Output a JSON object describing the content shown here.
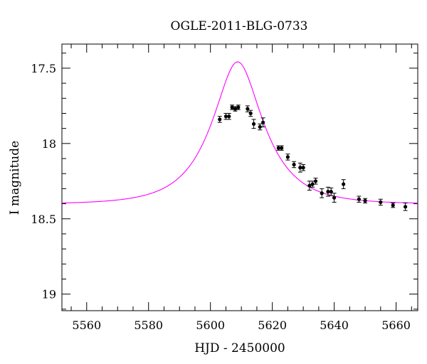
{
  "chart_data": {
    "type": "scatter",
    "title": "OGLE-2011-BLG-0733",
    "xlabel": "HJD - 2450000",
    "ylabel": "I magnitude",
    "xlim": [
      5552,
      5667
    ],
    "ylim": [
      19.11,
      17.34
    ],
    "y_inverted": true,
    "x_ticks": [
      5560,
      5580,
      5600,
      5620,
      5640,
      5660
    ],
    "y_ticks": [
      17.5,
      18,
      18.5,
      19
    ],
    "x_tick_labels": [
      "5560",
      "5580",
      "5600",
      "5620",
      "5640",
      "5660"
    ],
    "y_tick_labels": [
      "17.5",
      "18",
      "18.5",
      "19"
    ],
    "x_minor_step": 5,
    "y_minor_step": 0.1,
    "grid": false,
    "series": [
      {
        "kind": "points_with_errorbars",
        "color": "#000000",
        "points": [
          {
            "x": 5603.0,
            "y": 17.84,
            "err": 0.02
          },
          {
            "x": 5605.0,
            "y": 17.82,
            "err": 0.02
          },
          {
            "x": 5606.0,
            "y": 17.82,
            "err": 0.02
          },
          {
            "x": 5607.0,
            "y": 17.76,
            "err": 0.015
          },
          {
            "x": 5608.0,
            "y": 17.77,
            "err": 0.015
          },
          {
            "x": 5609.0,
            "y": 17.76,
            "err": 0.015
          },
          {
            "x": 5612.0,
            "y": 17.77,
            "err": 0.02
          },
          {
            "x": 5613.0,
            "y": 17.8,
            "err": 0.02
          },
          {
            "x": 5614.0,
            "y": 17.87,
            "err": 0.03
          },
          {
            "x": 5616.0,
            "y": 17.89,
            "err": 0.02
          },
          {
            "x": 5617.0,
            "y": 17.86,
            "err": 0.03
          },
          {
            "x": 5622.0,
            "y": 18.03,
            "err": 0.015
          },
          {
            "x": 5623.0,
            "y": 18.03,
            "err": 0.015
          },
          {
            "x": 5625.0,
            "y": 18.09,
            "err": 0.02
          },
          {
            "x": 5627.0,
            "y": 18.14,
            "err": 0.02
          },
          {
            "x": 5629.0,
            "y": 18.16,
            "err": 0.03
          },
          {
            "x": 5630.0,
            "y": 18.16,
            "err": 0.02
          },
          {
            "x": 5632.0,
            "y": 18.28,
            "err": 0.03
          },
          {
            "x": 5633.0,
            "y": 18.27,
            "err": 0.02
          },
          {
            "x": 5634.0,
            "y": 18.25,
            "err": 0.02
          },
          {
            "x": 5636.0,
            "y": 18.33,
            "err": 0.03
          },
          {
            "x": 5638.0,
            "y": 18.32,
            "err": 0.03
          },
          {
            "x": 5639.0,
            "y": 18.32,
            "err": 0.025
          },
          {
            "x": 5640.0,
            "y": 18.36,
            "err": 0.03
          },
          {
            "x": 5643.0,
            "y": 18.27,
            "err": 0.03
          },
          {
            "x": 5648.0,
            "y": 18.37,
            "err": 0.02
          },
          {
            "x": 5650.0,
            "y": 18.38,
            "err": 0.015
          },
          {
            "x": 5655.0,
            "y": 18.39,
            "err": 0.02
          },
          {
            "x": 5659.0,
            "y": 18.41,
            "err": 0.015
          },
          {
            "x": 5663.0,
            "y": 18.42,
            "err": 0.025
          }
        ]
      },
      {
        "kind": "model_curve",
        "color": "#ff00ff",
        "model": {
          "t0": 5608.8,
          "tE": 15.0,
          "u0": 0.45,
          "baseline": 18.4
        }
      }
    ]
  }
}
